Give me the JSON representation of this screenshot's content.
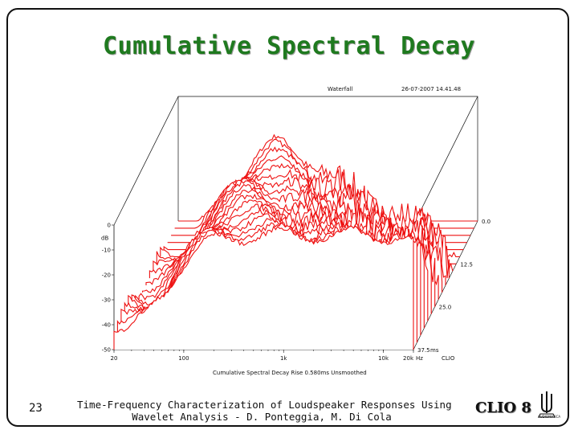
{
  "slide": {
    "title": "Cumulative Spectral Decay",
    "page_number": "23",
    "footer_line1": "Time-Frequency Characterization of Loudspeaker Responses Using",
    "footer_line2": "Wavelet Analysis - D. Ponteggia, M. Di Cola",
    "logo_text": "CLIO 8",
    "logo_brand": "AUDIOMATICA"
  },
  "chart_data": {
    "type": "waterfall",
    "header_left": "Waterfall",
    "header_right": "26-07-2007 14.41.48",
    "footer_caption": "Cumulative Spectral Decay   Rise 0.580ms   Unsmoothed",
    "brand_mark": "CLIO",
    "y_axis_unit": "dB",
    "y_ticks": [
      "0",
      "-10",
      "-20",
      "-30",
      "-40",
      "-50"
    ],
    "ylim": [
      -50,
      0
    ],
    "x_ticks": [
      "20",
      "100",
      "1k",
      "10k",
      "20k"
    ],
    "x_unit": "Hz",
    "x_scale": "log",
    "xlim": [
      20,
      20000
    ],
    "time_ticks": [
      "0.0",
      "12.5",
      "25.0",
      "37.5"
    ],
    "time_unit": "ms",
    "time_range": [
      0,
      37.5
    ],
    "slice_count": 19,
    "trace_color": "#ee1111",
    "frame_color": "#000000"
  }
}
